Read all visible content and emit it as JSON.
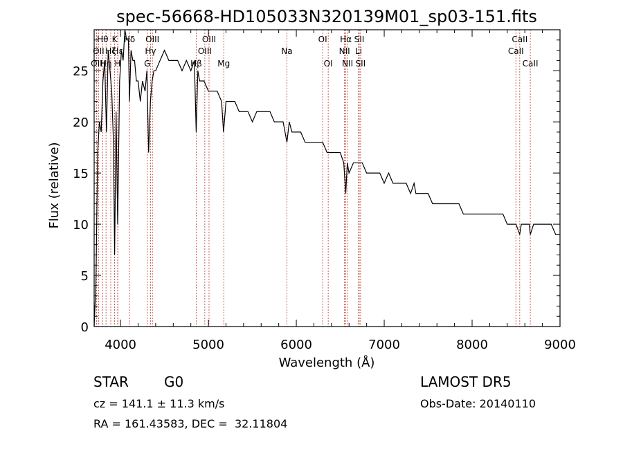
{
  "chart_data": {
    "type": "line",
    "title": "spec-56668-HD105033N320139M01_sp03-151.fits",
    "xlabel": "Wavelength (Å)",
    "ylabel": "Flux (relative)",
    "xlim": [
      3700,
      9000
    ],
    "ylim": [
      0,
      29
    ],
    "xticks": [
      4000,
      5000,
      6000,
      7000,
      8000,
      9000
    ],
    "yticks": [
      0,
      5,
      10,
      15,
      20,
      25
    ],
    "grid": false,
    "series": [
      {
        "x": [
          3700,
          3720,
          3740,
          3760,
          3780,
          3800,
          3820,
          3840,
          3860,
          3880,
          3900,
          3920,
          3933,
          3950,
          3968,
          3990,
          4010,
          4030,
          4050,
          4070,
          4090,
          4102,
          4120,
          4140,
          4160,
          4180,
          4200,
          4225,
          4250,
          4280,
          4300,
          4320,
          4340,
          4360,
          4380,
          4400,
          4450,
          4500,
          4550,
          4600,
          4650,
          4700,
          4750,
          4800,
          4840,
          4861,
          4880,
          4900,
          4950,
          5000,
          5050,
          5100,
          5150,
          5172,
          5200,
          5250,
          5300,
          5350,
          5400,
          5450,
          5500,
          5550,
          5600,
          5650,
          5700,
          5750,
          5800,
          5850,
          5893,
          5920,
          5950,
          6000,
          6050,
          6100,
          6150,
          6200,
          6250,
          6300,
          6350,
          6400,
          6450,
          6500,
          6540,
          6563,
          6580,
          6600,
          6650,
          6700,
          6750,
          6800,
          6850,
          6900,
          6950,
          7000,
          7050,
          7100,
          7150,
          7200,
          7250,
          7300,
          7340,
          7360,
          7400,
          7450,
          7500,
          7550,
          7600,
          7650,
          7700,
          7750,
          7800,
          7850,
          7900,
          7950,
          8000,
          8050,
          8100,
          8150,
          8200,
          8250,
          8300,
          8350,
          8400,
          8450,
          8500,
          8542,
          8560,
          8600,
          8650,
          8662,
          8700,
          8750,
          8800,
          8850,
          8900,
          8950,
          8990
        ],
        "values": [
          0,
          4,
          17,
          20,
          19,
          24,
          26,
          19,
          27,
          25,
          23,
          18,
          7,
          21,
          10,
          24,
          27,
          26,
          29,
          28,
          28,
          22,
          27,
          26,
          26,
          24,
          24,
          22,
          24,
          23,
          25,
          17,
          22,
          24,
          25,
          25,
          26,
          27,
          26,
          26,
          26,
          25,
          26,
          25,
          26,
          19,
          25,
          24,
          24,
          23,
          23,
          23,
          22,
          19,
          22,
          22,
          22,
          21,
          21,
          21,
          20,
          21,
          21,
          21,
          21,
          20,
          20,
          20,
          18,
          20,
          19,
          19,
          19,
          18,
          18,
          18,
          18,
          18,
          17,
          17,
          17,
          17,
          16,
          13,
          16,
          15,
          16,
          16,
          16,
          15,
          15,
          15,
          15,
          14,
          15,
          14,
          14,
          14,
          14,
          13,
          14,
          13,
          13,
          13,
          13,
          12,
          12,
          12,
          12,
          12,
          12,
          12,
          11,
          11,
          11,
          11,
          11,
          11,
          11,
          11,
          11,
          11,
          10,
          10,
          10,
          9,
          10,
          10,
          10,
          9,
          10,
          10,
          10,
          10,
          10,
          9,
          9
        ]
      }
    ],
    "lines": [
      {
        "x": 3727,
        "name": "OII",
        "row": 2
      },
      {
        "x": 3750,
        "name": "OII",
        "row": 1
      },
      {
        "x": 3797,
        "name": "Hθ",
        "row": 0
      },
      {
        "x": 3835,
        "name": "Hη",
        "row": 2
      },
      {
        "x": 3889,
        "name": "Hζ",
        "row": 1
      },
      {
        "x": 3933,
        "name": "K",
        "row": 0
      },
      {
        "x": 3968,
        "name": "H",
        "row": 2
      },
      {
        "x": 3970,
        "name": "Hε",
        "row": 1
      },
      {
        "x": 4102,
        "name": "Hδ",
        "row": 0
      },
      {
        "x": 4305,
        "name": "G",
        "row": 2
      },
      {
        "x": 4341,
        "name": "Hγ",
        "row": 1
      },
      {
        "x": 4363,
        "name": "OIII",
        "row": 0
      },
      {
        "x": 4861,
        "name": "Hβ",
        "row": 2
      },
      {
        "x": 4959,
        "name": "OIII",
        "row": 1
      },
      {
        "x": 5007,
        "name": "OIII",
        "row": 0
      },
      {
        "x": 5175,
        "name": "Mg",
        "row": 2
      },
      {
        "x": 5893,
        "name": "Na",
        "row": 1
      },
      {
        "x": 6300,
        "name": "OI",
        "row": 0
      },
      {
        "x": 6363,
        "name": "OI",
        "row": 2
      },
      {
        "x": 6548,
        "name": "NII",
        "row": 1
      },
      {
        "x": 6563,
        "name": "Hα",
        "row": 0
      },
      {
        "x": 6583,
        "name": "NII",
        "row": 2
      },
      {
        "x": 6708,
        "name": "Li",
        "row": 1
      },
      {
        "x": 6716,
        "name": "SII",
        "row": 0
      },
      {
        "x": 6731,
        "name": "SII",
        "row": 2
      },
      {
        "x": 8498,
        "name": "CaII",
        "row": 1
      },
      {
        "x": 8542,
        "name": "CaII",
        "row": 0
      },
      {
        "x": 8662,
        "name": "CaII",
        "row": 2
      }
    ]
  },
  "info": {
    "object_class": "STAR",
    "subclass": "G0",
    "survey": "LAMOST DR5",
    "redshift": "cz = 141.1 ± 11.3 km/s",
    "obs_date": "Obs-Date: 20140110",
    "coords": "RA = 161.43583, DEC =  32.11804"
  }
}
